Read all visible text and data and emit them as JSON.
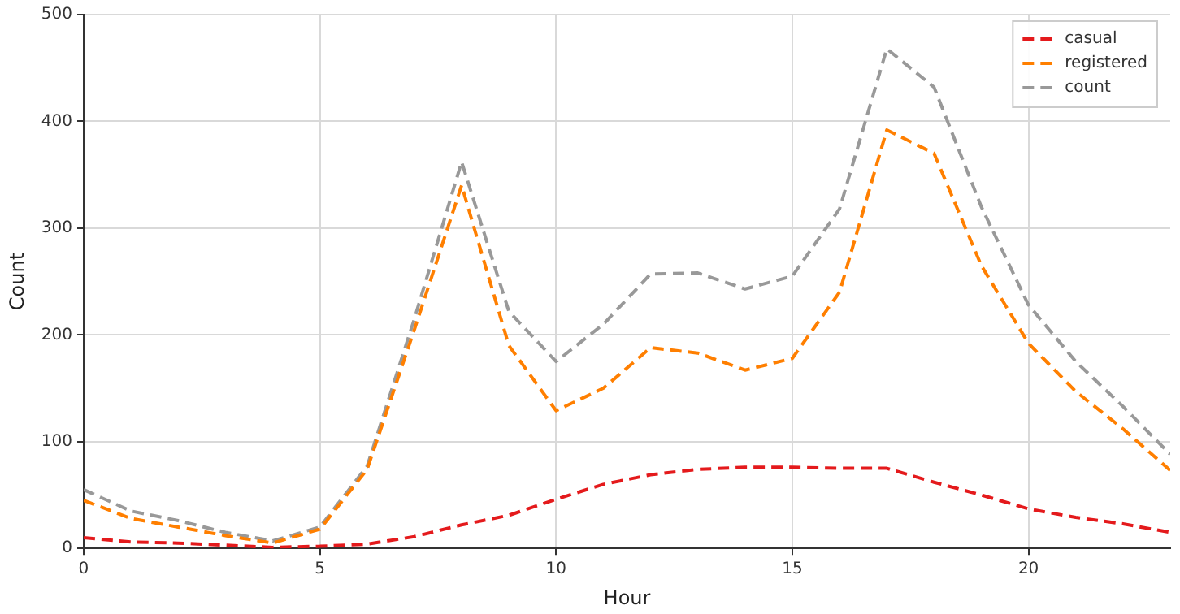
{
  "chart_data": {
    "type": "line",
    "xlabel": "Hour",
    "ylabel": "Count",
    "x": [
      0,
      1,
      2,
      3,
      4,
      5,
      6,
      7,
      8,
      9,
      10,
      11,
      12,
      13,
      14,
      15,
      16,
      17,
      18,
      19,
      20,
      21,
      22,
      23
    ],
    "series": [
      {
        "name": "casual",
        "color": "#e41a1c",
        "values": [
          10,
          6,
          5,
          3,
          1,
          2,
          4,
          11,
          22,
          31,
          46,
          60,
          69,
          74,
          76,
          76,
          75,
          75,
          62,
          50,
          37,
          29,
          23,
          15
        ]
      },
      {
        "name": "registered",
        "color": "#ff7f00",
        "values": [
          45,
          28,
          20,
          12,
          5,
          18,
          74,
          205,
          340,
          190,
          129,
          150,
          188,
          183,
          167,
          178,
          240,
          392,
          370,
          265,
          192,
          147,
          112,
          73
        ]
      },
      {
        "name": "count",
        "color": "#999999",
        "values": [
          55,
          35,
          26,
          15,
          7,
          20,
          77,
          215,
          362,
          222,
          175,
          210,
          257,
          258,
          243,
          255,
          318,
          468,
          432,
          320,
          228,
          175,
          133,
          88
        ]
      }
    ],
    "xlim": [
      0,
      23
    ],
    "xticks": [
      0,
      5,
      10,
      15,
      20
    ],
    "ylim": [
      0,
      500
    ],
    "yticks": [
      0,
      100,
      200,
      300,
      400,
      500
    ],
    "grid": true,
    "legend": "top right",
    "line_style": "dashed",
    "marker": "none"
  }
}
